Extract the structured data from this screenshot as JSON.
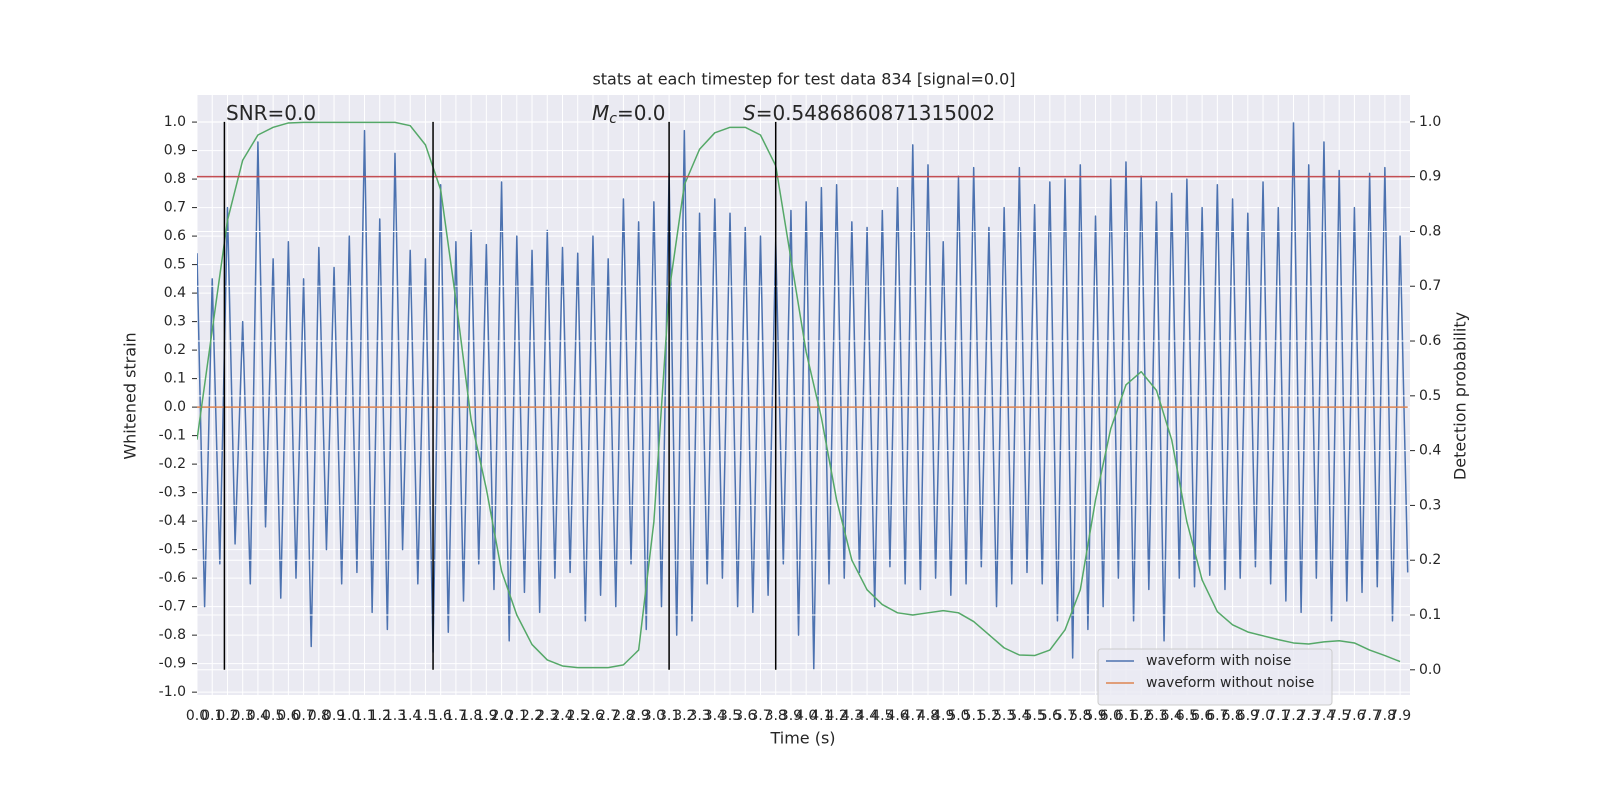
{
  "chart_data": {
    "type": "line",
    "title": "stats at each timestep for test data 834 [signal=0.0]",
    "xlabel": "Time (s)",
    "ylabel": "Whitened strain",
    "y2label": "Detection probability",
    "annotations": [
      {
        "text": "SNR=0.0"
      },
      {
        "symbol": "M",
        "subscript": "c",
        "text": "=0.0"
      },
      {
        "symbol": "S",
        "text": "=0.5486860871315002"
      }
    ],
    "xlim": [
      0,
      7.965
    ],
    "ylim": [
      -1.01,
      1.095
    ],
    "y2lim": [
      -0.046,
      1.049
    ],
    "xticks": [
      {
        "value": 0,
        "label": "0.0"
      },
      0.1,
      0.2,
      0.3,
      0.4,
      0.5,
      0.6,
      0.7,
      0.8,
      0.9,
      {
        "value": 1,
        "label": "1.0"
      },
      1.1,
      1.2,
      1.3,
      1.4,
      1.5,
      1.6,
      1.7,
      1.8,
      1.9,
      {
        "value": 2,
        "label": "2.0"
      },
      2.1,
      2.2,
      2.3,
      2.4,
      2.5,
      2.6,
      2.7,
      2.8,
      2.9,
      {
        "value": 3,
        "label": "3.0"
      },
      3.1,
      3.2,
      3.3,
      3.4,
      3.5,
      3.6,
      3.7,
      3.8,
      3.9,
      {
        "value": 4,
        "label": "4.0"
      },
      4.1,
      4.2,
      4.3,
      4.4,
      4.5,
      4.6,
      4.7,
      4.8,
      4.9,
      {
        "value": 5,
        "label": "5.0"
      },
      5.1,
      5.2,
      5.3,
      5.4,
      5.5,
      5.6,
      5.7,
      5.8,
      5.9,
      {
        "value": 6,
        "label": "6.0"
      },
      6.1,
      6.2,
      6.3,
      6.4,
      6.5,
      6.6,
      6.7,
      6.8,
      6.9,
      {
        "value": 7,
        "label": "7.0"
      },
      7.1,
      7.2,
      7.3,
      7.4,
      7.5,
      7.6,
      7.7,
      7.8,
      7.9
    ],
    "yticks": [
      {
        "value": -1,
        "label": "-1.0"
      },
      -0.9,
      -0.8,
      -0.7,
      -0.6,
      -0.5,
      -0.4,
      -0.3,
      -0.2,
      -0.1,
      {
        "value": 0,
        "label": "0.0"
      },
      0.1,
      0.2,
      0.3,
      0.4,
      0.5,
      0.6,
      0.7,
      0.8,
      0.9,
      {
        "value": 1,
        "label": "1.0"
      }
    ],
    "y2ticks": [
      {
        "value": 0,
        "label": "0.0"
      },
      0.1,
      0.2,
      0.3,
      0.4,
      0.5,
      0.6,
      0.7,
      0.8,
      0.9,
      {
        "value": 1,
        "label": "1.0"
      }
    ],
    "grid": true,
    "legend": "lower right",
    "series": [
      {
        "name": "waveform with noise",
        "color": "#4c72b0",
        "x": [
          0,
          0.05,
          0.1,
          0.15,
          0.2,
          0.25,
          0.3,
          0.35,
          0.4,
          0.45,
          0.5,
          0.55,
          0.6,
          0.65,
          0.7,
          0.75,
          0.8,
          0.85,
          0.9,
          0.95,
          1,
          1.05,
          1.1,
          1.15,
          1.2,
          1.25,
          1.3,
          1.35,
          1.4,
          1.45,
          1.5,
          1.55,
          1.6,
          1.65,
          1.7,
          1.75,
          1.8,
          1.85,
          1.9,
          1.95,
          2,
          2.05,
          2.1,
          2.15,
          2.2,
          2.25,
          2.3,
          2.35,
          2.4,
          2.45,
          2.5,
          2.55,
          2.6,
          2.65,
          2.7,
          2.75,
          2.8,
          2.85,
          2.9,
          2.95,
          3,
          3.05,
          3.1,
          3.15,
          3.2,
          3.25,
          3.3,
          3.35,
          3.4,
          3.45,
          3.5,
          3.55,
          3.6,
          3.65,
          3.7,
          3.75,
          3.8,
          3.85,
          3.9,
          3.95,
          4,
          4.05,
          4.1,
          4.15,
          4.2,
          4.25,
          4.3,
          4.35,
          4.4,
          4.45,
          4.5,
          4.55,
          4.6,
          4.65,
          4.7,
          4.75,
          4.8,
          4.85,
          4.9,
          4.95,
          5,
          5.05,
          5.1,
          5.15,
          5.2,
          5.25,
          5.3,
          5.35,
          5.4,
          5.45,
          5.5,
          5.55,
          5.6,
          5.65,
          5.7,
          5.75,
          5.8,
          5.85,
          5.9,
          5.95,
          6,
          6.05,
          6.1,
          6.15,
          6.2,
          6.25,
          6.3,
          6.35,
          6.4,
          6.45,
          6.5,
          6.55,
          6.6,
          6.65,
          6.7,
          6.75,
          6.8,
          6.85,
          6.9,
          6.95,
          7,
          7.05,
          7.1,
          7.15,
          7.2,
          7.25,
          7.3,
          7.35,
          7.4,
          7.45,
          7.5,
          7.55,
          7.6,
          7.65,
          7.7,
          7.75,
          7.8,
          7.85,
          7.9,
          7.95
        ],
        "values": [
          0.54,
          -0.7,
          0.45,
          -0.55,
          0.7,
          -0.48,
          0.3,
          -0.62,
          0.93,
          -0.42,
          0.52,
          -0.67,
          0.58,
          -0.6,
          0.45,
          -0.84,
          0.56,
          -0.5,
          0.49,
          -0.62,
          0.6,
          -0.58,
          0.97,
          -0.72,
          0.66,
          -0.78,
          0.89,
          -0.5,
          0.55,
          -0.62,
          0.52,
          -0.86,
          0.78,
          -0.79,
          0.58,
          -0.68,
          0.62,
          -0.55,
          0.57,
          -0.64,
          0.79,
          -0.82,
          0.6,
          -0.65,
          0.55,
          -0.72,
          0.62,
          -0.6,
          0.56,
          -0.58,
          0.54,
          -0.75,
          0.6,
          -0.66,
          0.52,
          -0.7,
          0.73,
          -0.55,
          0.65,
          -0.78,
          0.72,
          -0.7,
          0.82,
          -0.8,
          0.97,
          -0.75,
          0.68,
          -0.62,
          0.73,
          -0.6,
          0.68,
          -0.7,
          0.63,
          -0.72,
          0.6,
          -0.66,
          0.58,
          -0.55,
          0.69,
          -0.8,
          0.72,
          -0.92,
          0.77,
          -0.62,
          0.78,
          -0.6,
          0.65,
          -0.58,
          0.63,
          -0.7,
          0.69,
          -0.56,
          0.77,
          -0.62,
          0.92,
          -0.64,
          0.85,
          -0.6,
          0.58,
          -0.66,
          0.81,
          -0.62,
          0.84,
          -0.56,
          0.63,
          -0.7,
          0.7,
          -0.62,
          0.84,
          -0.58,
          0.71,
          -0.62,
          0.79,
          -0.75,
          0.8,
          -0.88,
          0.85,
          -0.78,
          0.67,
          -0.7,
          0.8,
          -0.6,
          0.86,
          -0.75,
          0.81,
          -0.64,
          0.72,
          -0.82,
          0.75,
          -0.6,
          0.8,
          -0.63,
          0.7,
          -0.59,
          0.78,
          -0.64,
          0.73,
          -0.6,
          0.68,
          -0.56,
          0.79,
          -0.62,
          0.7,
          -0.68,
          1.0,
          -0.72,
          0.85,
          -0.6,
          0.93,
          -0.75,
          0.83,
          -0.68,
          0.7,
          -0.65,
          0.82,
          -0.63,
          0.84,
          -0.75,
          0.6,
          -0.58
        ]
      },
      {
        "name": "waveform without noise",
        "color": "#dd8452",
        "x": [
          0,
          7.95
        ],
        "values": [
          0,
          0
        ]
      },
      {
        "color": "#55a868",
        "axis": "y2",
        "x": [
          0,
          0.1,
          0.2,
          0.3,
          0.4,
          0.5,
          0.6,
          0.7,
          0.8,
          0.9,
          1,
          1.1,
          1.2,
          1.3,
          1.4,
          1.5,
          1.6,
          1.7,
          1.8,
          1.9,
          2,
          2.1,
          2.2,
          2.3,
          2.4,
          2.5,
          2.6,
          2.7,
          2.8,
          2.9,
          3,
          3.1,
          3.2,
          3.3,
          3.4,
          3.5,
          3.6,
          3.7,
          3.8,
          3.9,
          4,
          4.1,
          4.2,
          4.3,
          4.4,
          4.5,
          4.6,
          4.7,
          4.8,
          4.9,
          5,
          5.1,
          5.2,
          5.3,
          5.4,
          5.5,
          5.6,
          5.7,
          5.8,
          5.9,
          6,
          6.1,
          6.2,
          6.3,
          6.4,
          6.5,
          6.6,
          6.7,
          6.8,
          6.9,
          7,
          7.1,
          7.2,
          7.3,
          7.4,
          7.5,
          7.6,
          7.7,
          7.8,
          7.9
        ],
        "values": [
          0.42,
          0.62,
          0.82,
          0.93,
          0.976,
          0.99,
          0.998,
          0.999,
          0.999,
          0.999,
          0.999,
          0.999,
          0.999,
          0.999,
          0.993,
          0.958,
          0.876,
          0.675,
          0.456,
          0.33,
          0.18,
          0.1,
          0.046,
          0.018,
          0.007,
          0.004,
          0.004,
          0.004,
          0.009,
          0.036,
          0.27,
          0.69,
          0.885,
          0.95,
          0.98,
          0.99,
          0.99,
          0.976,
          0.92,
          0.75,
          0.58,
          0.46,
          0.31,
          0.2,
          0.146,
          0.119,
          0.104,
          0.1,
          0.104,
          0.108,
          0.104,
          0.088,
          0.064,
          0.04,
          0.027,
          0.026,
          0.036,
          0.073,
          0.146,
          0.31,
          0.44,
          0.52,
          0.544,
          0.51,
          0.42,
          0.27,
          0.164,
          0.106,
          0.082,
          0.069,
          0.062,
          0.055,
          0.049,
          0.047,
          0.051,
          0.053,
          0.049,
          0.036,
          0.026,
          0.015
        ]
      }
    ],
    "hlines": [
      {
        "y": 0.9,
        "axis": "y2",
        "color": "#c44e52"
      }
    ],
    "vlines": {
      "x": [
        0.18,
        1.55,
        3.1,
        3.8
      ],
      "ymin": 0,
      "ymax": 1,
      "axis": "y2",
      "color": "#000000"
    }
  }
}
